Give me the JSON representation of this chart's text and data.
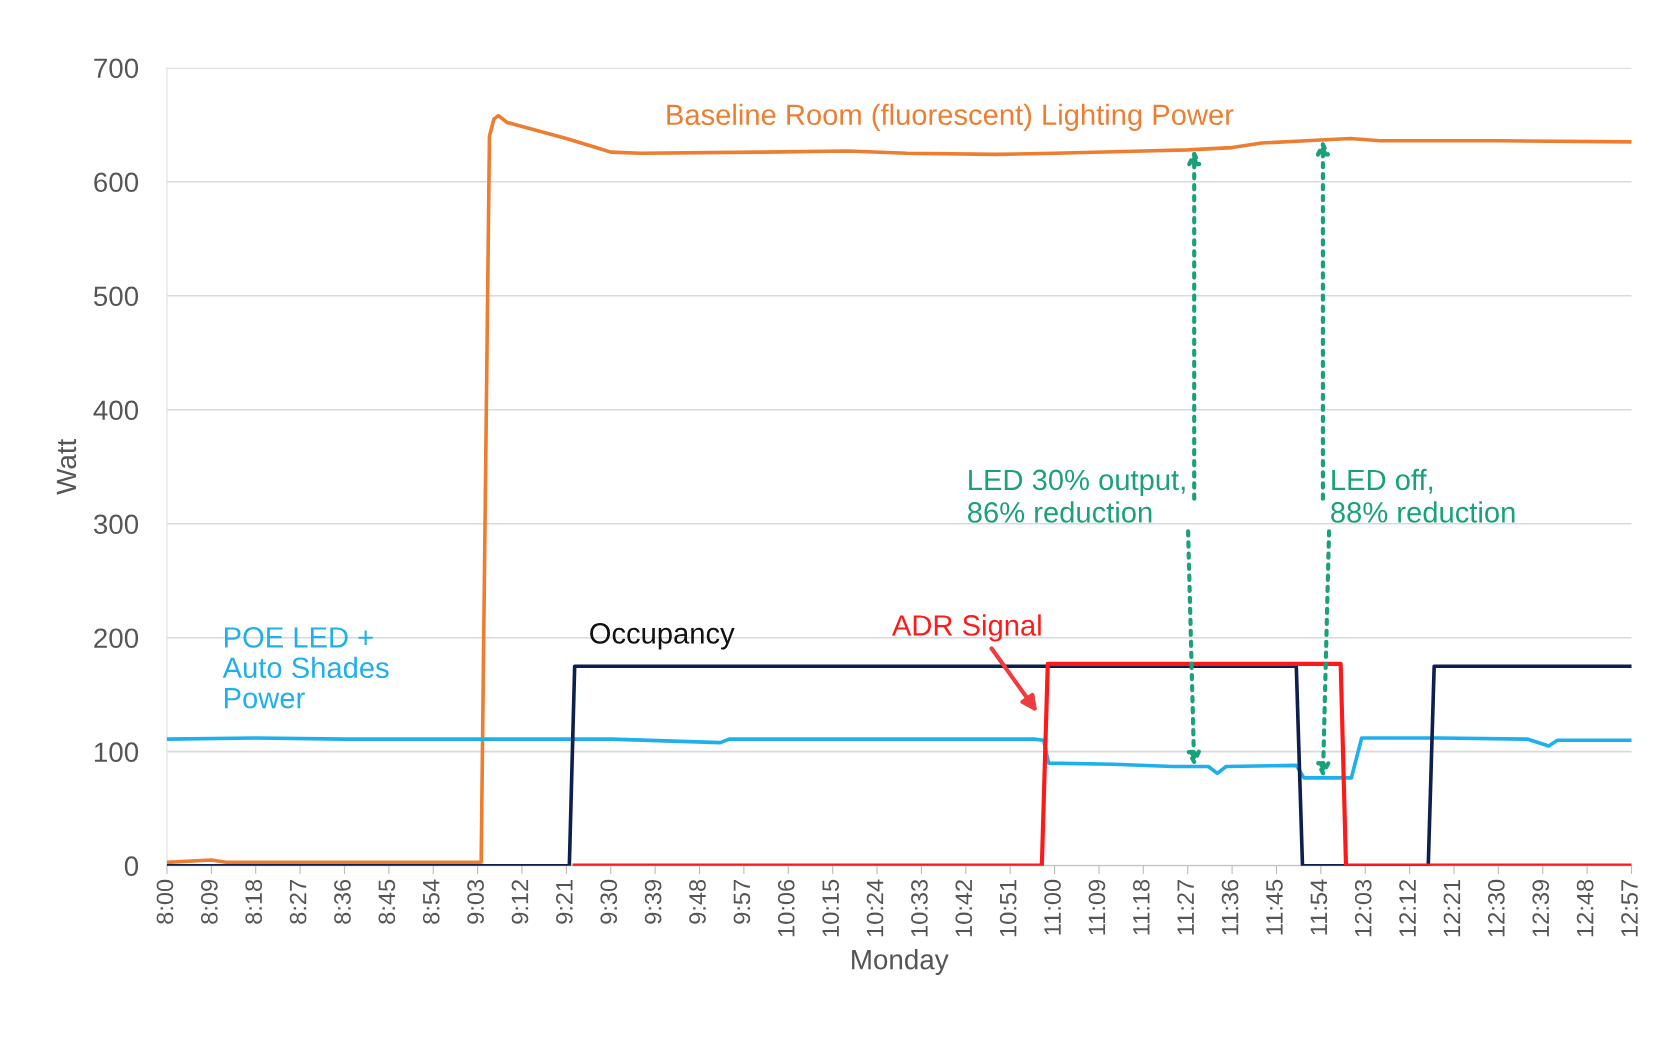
{
  "chart_data": {
    "type": "line",
    "ylabel": "Watt",
    "xlabel": "Monday",
    "xlim": [
      8.0,
      12.95
    ],
    "ylim": [
      0,
      700
    ],
    "yticks": [
      0,
      100,
      200,
      300,
      400,
      500,
      600,
      700
    ],
    "xticks": [
      {
        "value": 8.0,
        "label": "8:00"
      },
      {
        "value": 8.15,
        "label": "8:09"
      },
      {
        "value": 8.3,
        "label": "8:18"
      },
      {
        "value": 8.45,
        "label": "8:27"
      },
      {
        "value": 8.6,
        "label": "8:36"
      },
      {
        "value": 8.75,
        "label": "8:45"
      },
      {
        "value": 8.9,
        "label": "8:54"
      },
      {
        "value": 9.05,
        "label": "9:03"
      },
      {
        "value": 9.2,
        "label": "9:12"
      },
      {
        "value": 9.35,
        "label": "9:21"
      },
      {
        "value": 9.5,
        "label": "9:30"
      },
      {
        "value": 9.65,
        "label": "9:39"
      },
      {
        "value": 9.8,
        "label": "9:48"
      },
      {
        "value": 9.95,
        "label": "9:57"
      },
      {
        "value": 10.1,
        "label": "10:06"
      },
      {
        "value": 10.25,
        "label": "10:15"
      },
      {
        "value": 10.4,
        "label": "10:24"
      },
      {
        "value": 10.55,
        "label": "10:33"
      },
      {
        "value": 10.7,
        "label": "10:42"
      },
      {
        "value": 10.85,
        "label": "10:51"
      },
      {
        "value": 11.0,
        "label": "11:00"
      },
      {
        "value": 11.15,
        "label": "11:09"
      },
      {
        "value": 11.3,
        "label": "11:18"
      },
      {
        "value": 11.45,
        "label": "11:27"
      },
      {
        "value": 11.6,
        "label": "11:36"
      },
      {
        "value": 11.75,
        "label": "11:45"
      },
      {
        "value": 11.9,
        "label": "11:54"
      },
      {
        "value": 12.05,
        "label": "12:03"
      },
      {
        "value": 12.2,
        "label": "12:12"
      },
      {
        "value": 12.35,
        "label": "12:21"
      },
      {
        "value": 12.5,
        "label": "12:30"
      },
      {
        "value": 12.65,
        "label": "12:39"
      },
      {
        "value": 12.8,
        "label": "12:48"
      },
      {
        "value": 12.95,
        "label": "12:57"
      }
    ],
    "grid": "y",
    "legend": false,
    "marker": "none",
    "line_style": "solid",
    "series": [
      {
        "name": "Baseline Room (fluorescent) Lighting Power",
        "color": "#ed7d31",
        "x": [
          8.0,
          8.15,
          8.2,
          9.062,
          9.09,
          9.105,
          9.12,
          9.15,
          9.25,
          9.35,
          9.45,
          9.5,
          9.6,
          10.0,
          10.3,
          10.5,
          10.8,
          11.0,
          11.3,
          11.45,
          11.6,
          11.7,
          11.85,
          12.0,
          12.1,
          12.5,
          12.95
        ],
        "values": [
          3,
          5,
          3,
          3,
          640,
          655,
          658,
          652,
          645,
          638,
          630,
          626,
          625,
          626,
          627,
          625,
          624,
          625,
          627,
          628,
          630,
          634,
          636,
          638,
          636,
          636,
          635
        ]
      },
      {
        "name": "POE LED + Auto Shades Power",
        "color": "#1fb0ec",
        "x": [
          8.0,
          8.3,
          8.6,
          9.0,
          9.5,
          9.87,
          9.9,
          10.5,
          10.93,
          10.963,
          10.98,
          11.2,
          11.4,
          11.52,
          11.55,
          11.58,
          11.817,
          11.843,
          12.003,
          12.038,
          12.3,
          12.6,
          12.67,
          12.7,
          12.95
        ],
        "values": [
          111,
          112,
          111,
          111,
          111,
          108,
          111,
          111,
          111,
          110,
          90,
          89,
          87,
          87,
          81,
          87,
          88,
          77,
          77,
          112,
          112,
          111,
          105,
          110,
          110
        ]
      },
      {
        "name": "Occupancy",
        "color": "#0d1f4f",
        "x": [
          8.0,
          9.36,
          9.378,
          11.817,
          11.838,
          12.263,
          12.283,
          12.95
        ],
        "values": [
          0,
          0,
          175,
          175,
          0,
          0,
          175,
          175
        ]
      },
      {
        "name": "ADR Signal",
        "color": "#ff1a1a",
        "x": [
          9.378,
          10.957,
          10.977,
          11.967,
          11.985,
          12.95
        ],
        "values": [
          0,
          0,
          177,
          177,
          0,
          0
        ]
      }
    ],
    "annotations": [
      {
        "text": "LED 30% output,\n86% reduction",
        "x": 11.472,
        "y": 87
      },
      {
        "text": "LED off,\n88% reduction",
        "x": 11.907,
        "y": 77
      }
    ]
  }
}
